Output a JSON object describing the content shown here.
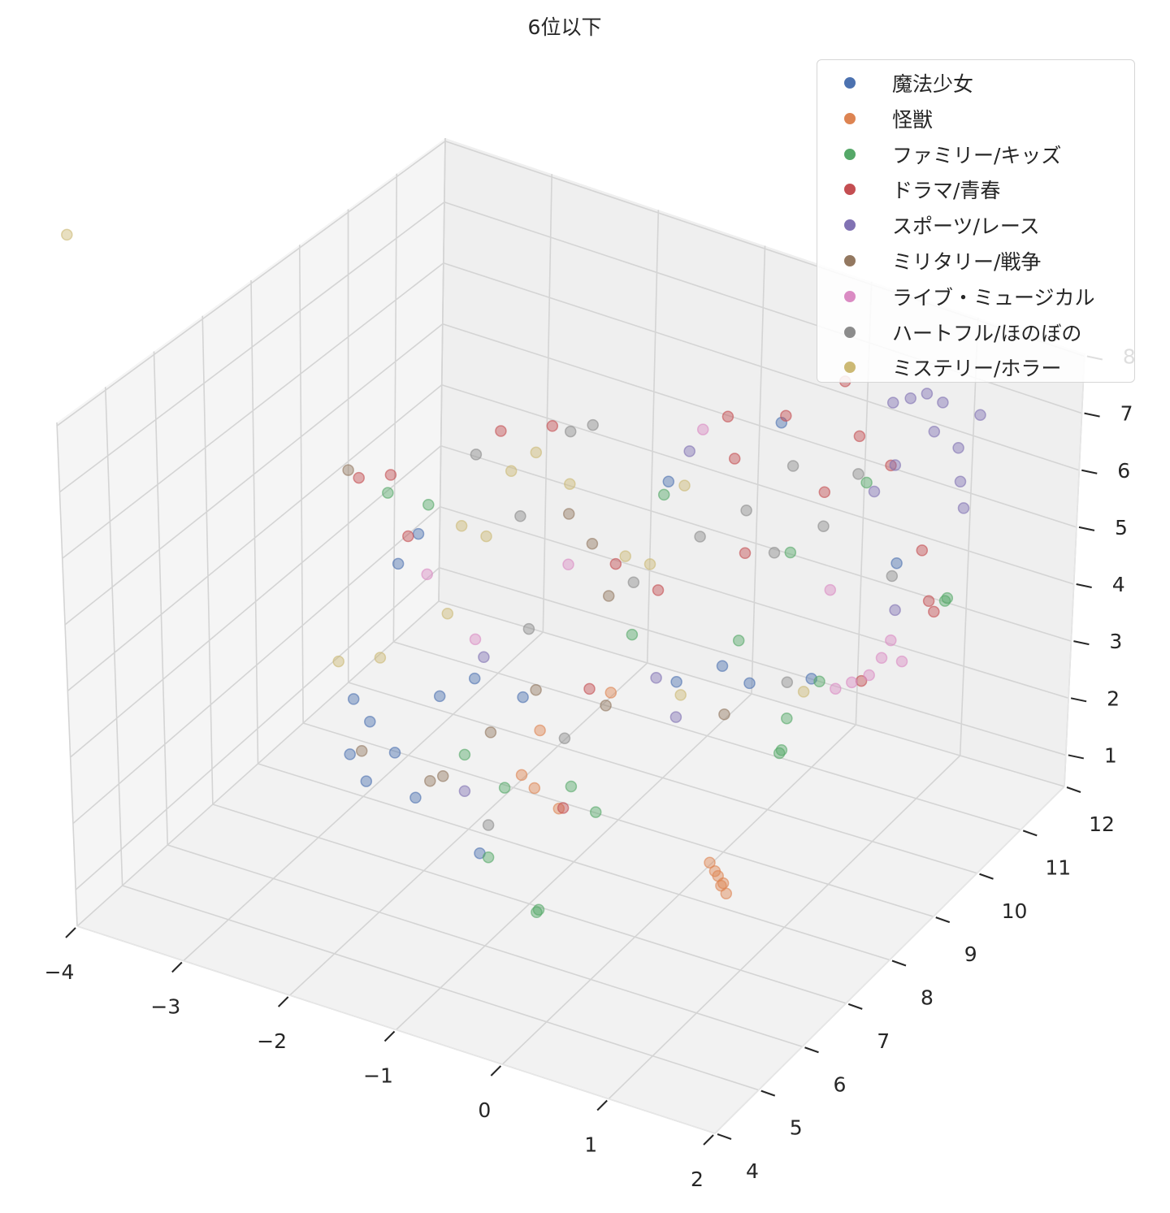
{
  "chart_data": {
    "type": "scatter3d",
    "title": "6位以下",
    "xlim": [
      -4,
      2
    ],
    "ylim": [
      4,
      12
    ],
    "zlim": [
      0.45,
      8.05
    ],
    "xticks": [
      "−4",
      "−3",
      "−2",
      "−1",
      "0",
      "1",
      "2"
    ],
    "xtick_values": [
      -4,
      -3,
      -2,
      -1,
      0,
      1,
      2
    ],
    "yticks": [
      "4",
      "5",
      "6",
      "7",
      "8",
      "9",
      "10",
      "11",
      "12"
    ],
    "ytick_values": [
      4,
      5,
      6,
      7,
      8,
      9,
      10,
      11,
      12
    ],
    "zticks": [
      "1",
      "2",
      "3",
      "4",
      "5",
      "6",
      "7",
      "8"
    ],
    "ztick_values": [
      1,
      2,
      3,
      4,
      5,
      6,
      7,
      8
    ],
    "grid": true,
    "legend_position": "top-right",
    "series": [
      {
        "name": "魔法少女",
        "color": "#4c72b0",
        "points": [
          [
            -2.22,
            6,
            3.65
          ],
          [
            -2.07,
            6,
            3.38
          ],
          [
            -2.26,
            6,
            2.77
          ],
          [
            -1.84,
            6,
            3.02
          ],
          [
            -1.65,
            6,
            2.42
          ],
          [
            -2.11,
            6,
            2.43
          ],
          [
            -1.42,
            6,
            4.13
          ],
          [
            -1.52,
            7,
            3.74
          ],
          [
            -1.07,
            7,
            3.69
          ],
          [
            -0.06,
            8,
            3.86
          ],
          [
            1.14,
            10,
            5.21
          ],
          [
            -2.47,
            8,
            4.9
          ],
          [
            -2.66,
            8,
            4.32
          ],
          [
            0.38,
            10,
            2.84
          ],
          [
            0.21,
            9,
            3.34
          ],
          [
            -0.63,
            5,
            2.73
          ],
          [
            -0.46,
            10,
            2.59
          ],
          [
            -0.38,
            11,
            6.05
          ],
          [
            -1.0,
            10,
            5.34
          ]
        ]
      },
      {
        "name": "怪獣",
        "color": "#dd8452",
        "points": [
          [
            0.8,
            7,
            1.7
          ],
          [
            0.69,
            7,
            2.01
          ],
          [
            0.85,
            7,
            1.6
          ],
          [
            0.77,
            7,
            1.84
          ],
          [
            0.82,
            7,
            1.75
          ],
          [
            0.74,
            7,
            1.9
          ],
          [
            -0.66,
            6,
            3.31
          ],
          [
            -0.54,
            6,
            3.17
          ],
          [
            0.1,
            5,
            3.82
          ],
          [
            -0.91,
            7,
            3.25
          ],
          [
            -0.67,
            8,
            3.35
          ]
        ]
      },
      {
        "name": "ファミリー/キッズ",
        "color": "#55a868",
        "points": [
          [
            0.91,
            8,
            3.24
          ],
          [
            0.93,
            8,
            3.3
          ],
          [
            -0.1,
            5,
            2.1
          ],
          [
            -0.08,
            5,
            2.15
          ],
          [
            1.6,
            10,
            4.84
          ],
          [
            1.62,
            10,
            4.9
          ],
          [
            -0.55,
            5,
            2.71
          ],
          [
            -3.19,
            9,
            4.55
          ],
          [
            -2.81,
            9,
            4.57
          ],
          [
            -0.48,
            8,
            4.39
          ],
          [
            -0.2,
            6,
            3.38
          ],
          [
            0.1,
            9,
            3.98
          ],
          [
            0.15,
            10,
            4.82
          ],
          [
            0.43,
            11,
            5.51
          ],
          [
            -1.19,
            6,
            3.34
          ],
          [
            0.44,
            5,
            3.95
          ],
          [
            -1.04,
            10,
            5.1
          ],
          [
            0.86,
            9,
            3.73
          ],
          [
            -0.4,
            5,
            3.87
          ],
          [
            0.97,
            8,
            3.84
          ]
        ]
      },
      {
        "name": "ドラマ/青春",
        "color": "#c44e52",
        "points": [
          [
            -0.88,
            11,
            5.86
          ],
          [
            -0.34,
            11,
            6.19
          ],
          [
            0.2,
            11,
            7.09
          ],
          [
            0.35,
            11,
            6.25
          ],
          [
            0.45,
            10,
            6.0
          ],
          [
            -0.39,
            10,
            6.07
          ],
          [
            0.65,
            11,
            5.93
          ],
          [
            1.37,
            10,
            5.56
          ],
          [
            1.45,
            10,
            4.75
          ],
          [
            1.5,
            10,
            4.6
          ],
          [
            -2.52,
            11,
            4.77
          ],
          [
            -2.57,
            10,
            5.28
          ],
          [
            -3.9,
            10,
            3.79
          ],
          [
            -3.6,
            10,
            4.0
          ],
          [
            -3.0,
            9,
            3.96
          ],
          [
            -0.64,
            8,
            5.44
          ],
          [
            -0.87,
            8,
            3.3
          ],
          [
            0.14,
            5,
            3.85
          ],
          [
            1.25,
            9,
            3.96
          ],
          [
            0.14,
            9,
            5.44
          ],
          [
            -0.66,
            9,
            4.38
          ]
        ]
      },
      {
        "name": "スポーツ/レース",
        "color": "#8172b3",
        "points": [
          [
            0.81,
            11,
            7.17
          ],
          [
            0.96,
            11,
            7.34
          ],
          [
            0.65,
            11,
            7.0
          ],
          [
            1.11,
            11,
            7.28
          ],
          [
            1.46,
            11,
            7.28
          ],
          [
            1.27,
            11,
            6.6
          ],
          [
            1.3,
            11,
            6.04
          ],
          [
            1.34,
            11,
            5.61
          ],
          [
            1.04,
            11,
            6.74
          ],
          [
            0.69,
            11,
            5.96
          ],
          [
            0.91,
            10,
            6.28
          ],
          [
            -0.81,
            10,
            5.95
          ],
          [
            -0.25,
            8,
            3.82
          ],
          [
            -0.06,
            8,
            3.29
          ],
          [
            -1.19,
            6,
            2.77
          ],
          [
            -1.86,
            8,
            3.27
          ],
          [
            1.14,
            10,
            4.42
          ]
        ]
      },
      {
        "name": "ミリタリー/戦争",
        "color": "#937860",
        "points": [
          [
            -4.0,
            10,
            3.86
          ],
          [
            -1.09,
            5,
            3.6
          ],
          [
            -0.97,
            5,
            3.74
          ],
          [
            -0.02,
            9,
            2.7
          ],
          [
            -0.3,
            7,
            3.98
          ],
          [
            -1.28,
            9,
            4.79
          ],
          [
            -1.12,
            9,
            4.03
          ],
          [
            -2.15,
            6,
            2.88
          ],
          [
            -0.95,
            7,
            3.87
          ],
          [
            -1.5,
            9,
            5.15
          ],
          [
            -1.37,
            7,
            2.97
          ]
        ]
      },
      {
        "name": "ライブ・ミュージカル",
        "color": "#da8bc3",
        "points": [
          [
            1.42,
            9.5,
            4.05
          ],
          [
            1.31,
            9.5,
            4.34
          ],
          [
            1.12,
            9.5,
            3.65
          ],
          [
            0.96,
            9.5,
            3.44
          ],
          [
            0.81,
            9.5,
            3.25
          ],
          [
            1.23,
            9.5,
            4.0
          ],
          [
            -2.39,
            8,
            4.3
          ],
          [
            -1.94,
            8,
            3.51
          ],
          [
            -1.5,
            9,
            4.33
          ],
          [
            -0.69,
            10,
            6.38
          ],
          [
            0.53,
            10,
            4.41
          ]
        ]
      },
      {
        "name": "ハートフル/ほのぼの",
        "color": "#8c8c8c",
        "points": [
          [
            0.35,
            11,
            5.61
          ],
          [
            -0.26,
            11,
            5.39
          ],
          [
            0.45,
            10,
            5.43
          ],
          [
            0.0,
            10,
            4.73
          ],
          [
            -0.27,
            10,
            5.28
          ],
          [
            1.1,
            10,
            4.97
          ],
          [
            -2.14,
            11,
            5.0
          ],
          [
            -1.92,
            10,
            5.64
          ],
          [
            -2.8,
            10,
            4.77
          ],
          [
            -2.38,
            10,
            4.0
          ],
          [
            -0.55,
            5,
            3.21
          ],
          [
            -0.28,
            9,
            5.47
          ],
          [
            -0.89,
            9,
            4.38
          ],
          [
            -1.44,
            8,
            3.95
          ],
          [
            0.56,
            9,
            3.55
          ],
          [
            -0.68,
            7,
            3.25
          ]
        ]
      },
      {
        "name": "ミステリー/ホラー",
        "color": "#ccb974",
        "points": [
          [
            -4.3,
            5,
            10.2
          ],
          [
            -2.79,
            7,
            3.32
          ],
          [
            -2.4,
            7,
            3.59
          ],
          [
            -1.84,
            8,
            5.21
          ],
          [
            -2.04,
            9,
            5.54
          ],
          [
            -1.81,
            9,
            5.97
          ],
          [
            -2.5,
            9,
            4.4
          ],
          [
            -1.92,
            10,
            4.78
          ],
          [
            -0.97,
            9,
            4.76
          ],
          [
            -0.85,
            10,
            5.36
          ],
          [
            -0.74,
            9,
            4.76
          ],
          [
            1.12,
            8,
            4.36
          ],
          [
            -0.02,
            8,
            3.67
          ],
          [
            -2.2,
            8,
            3.78
          ]
        ]
      }
    ]
  }
}
